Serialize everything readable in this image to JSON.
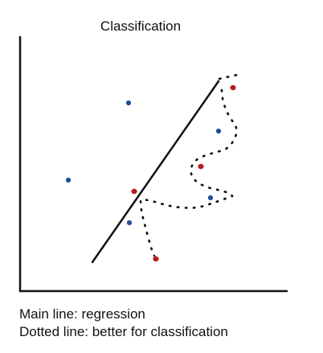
{
  "title": "Classification",
  "captions": {
    "main": "Main line: regression",
    "dotted": "Dotted line: better for classification"
  },
  "colors": {
    "ink": "#111111",
    "class_blue": "#1f4e9c",
    "class_red": "#b71c1c"
  },
  "points": [
    {
      "class": "blue",
      "color": "#1f4e9c"
    },
    {
      "class": "blue",
      "color": "#1f4e9c"
    },
    {
      "class": "blue",
      "color": "#1f4e9c"
    },
    {
      "class": "blue",
      "color": "#1f4e9c"
    },
    {
      "class": "blue",
      "color": "#1f4e9c"
    },
    {
      "class": "red",
      "color": "#b71c1c"
    },
    {
      "class": "red",
      "color": "#b71c1c"
    },
    {
      "class": "red",
      "color": "#b71c1c"
    },
    {
      "class": "red",
      "color": "#b71c1c"
    }
  ]
}
